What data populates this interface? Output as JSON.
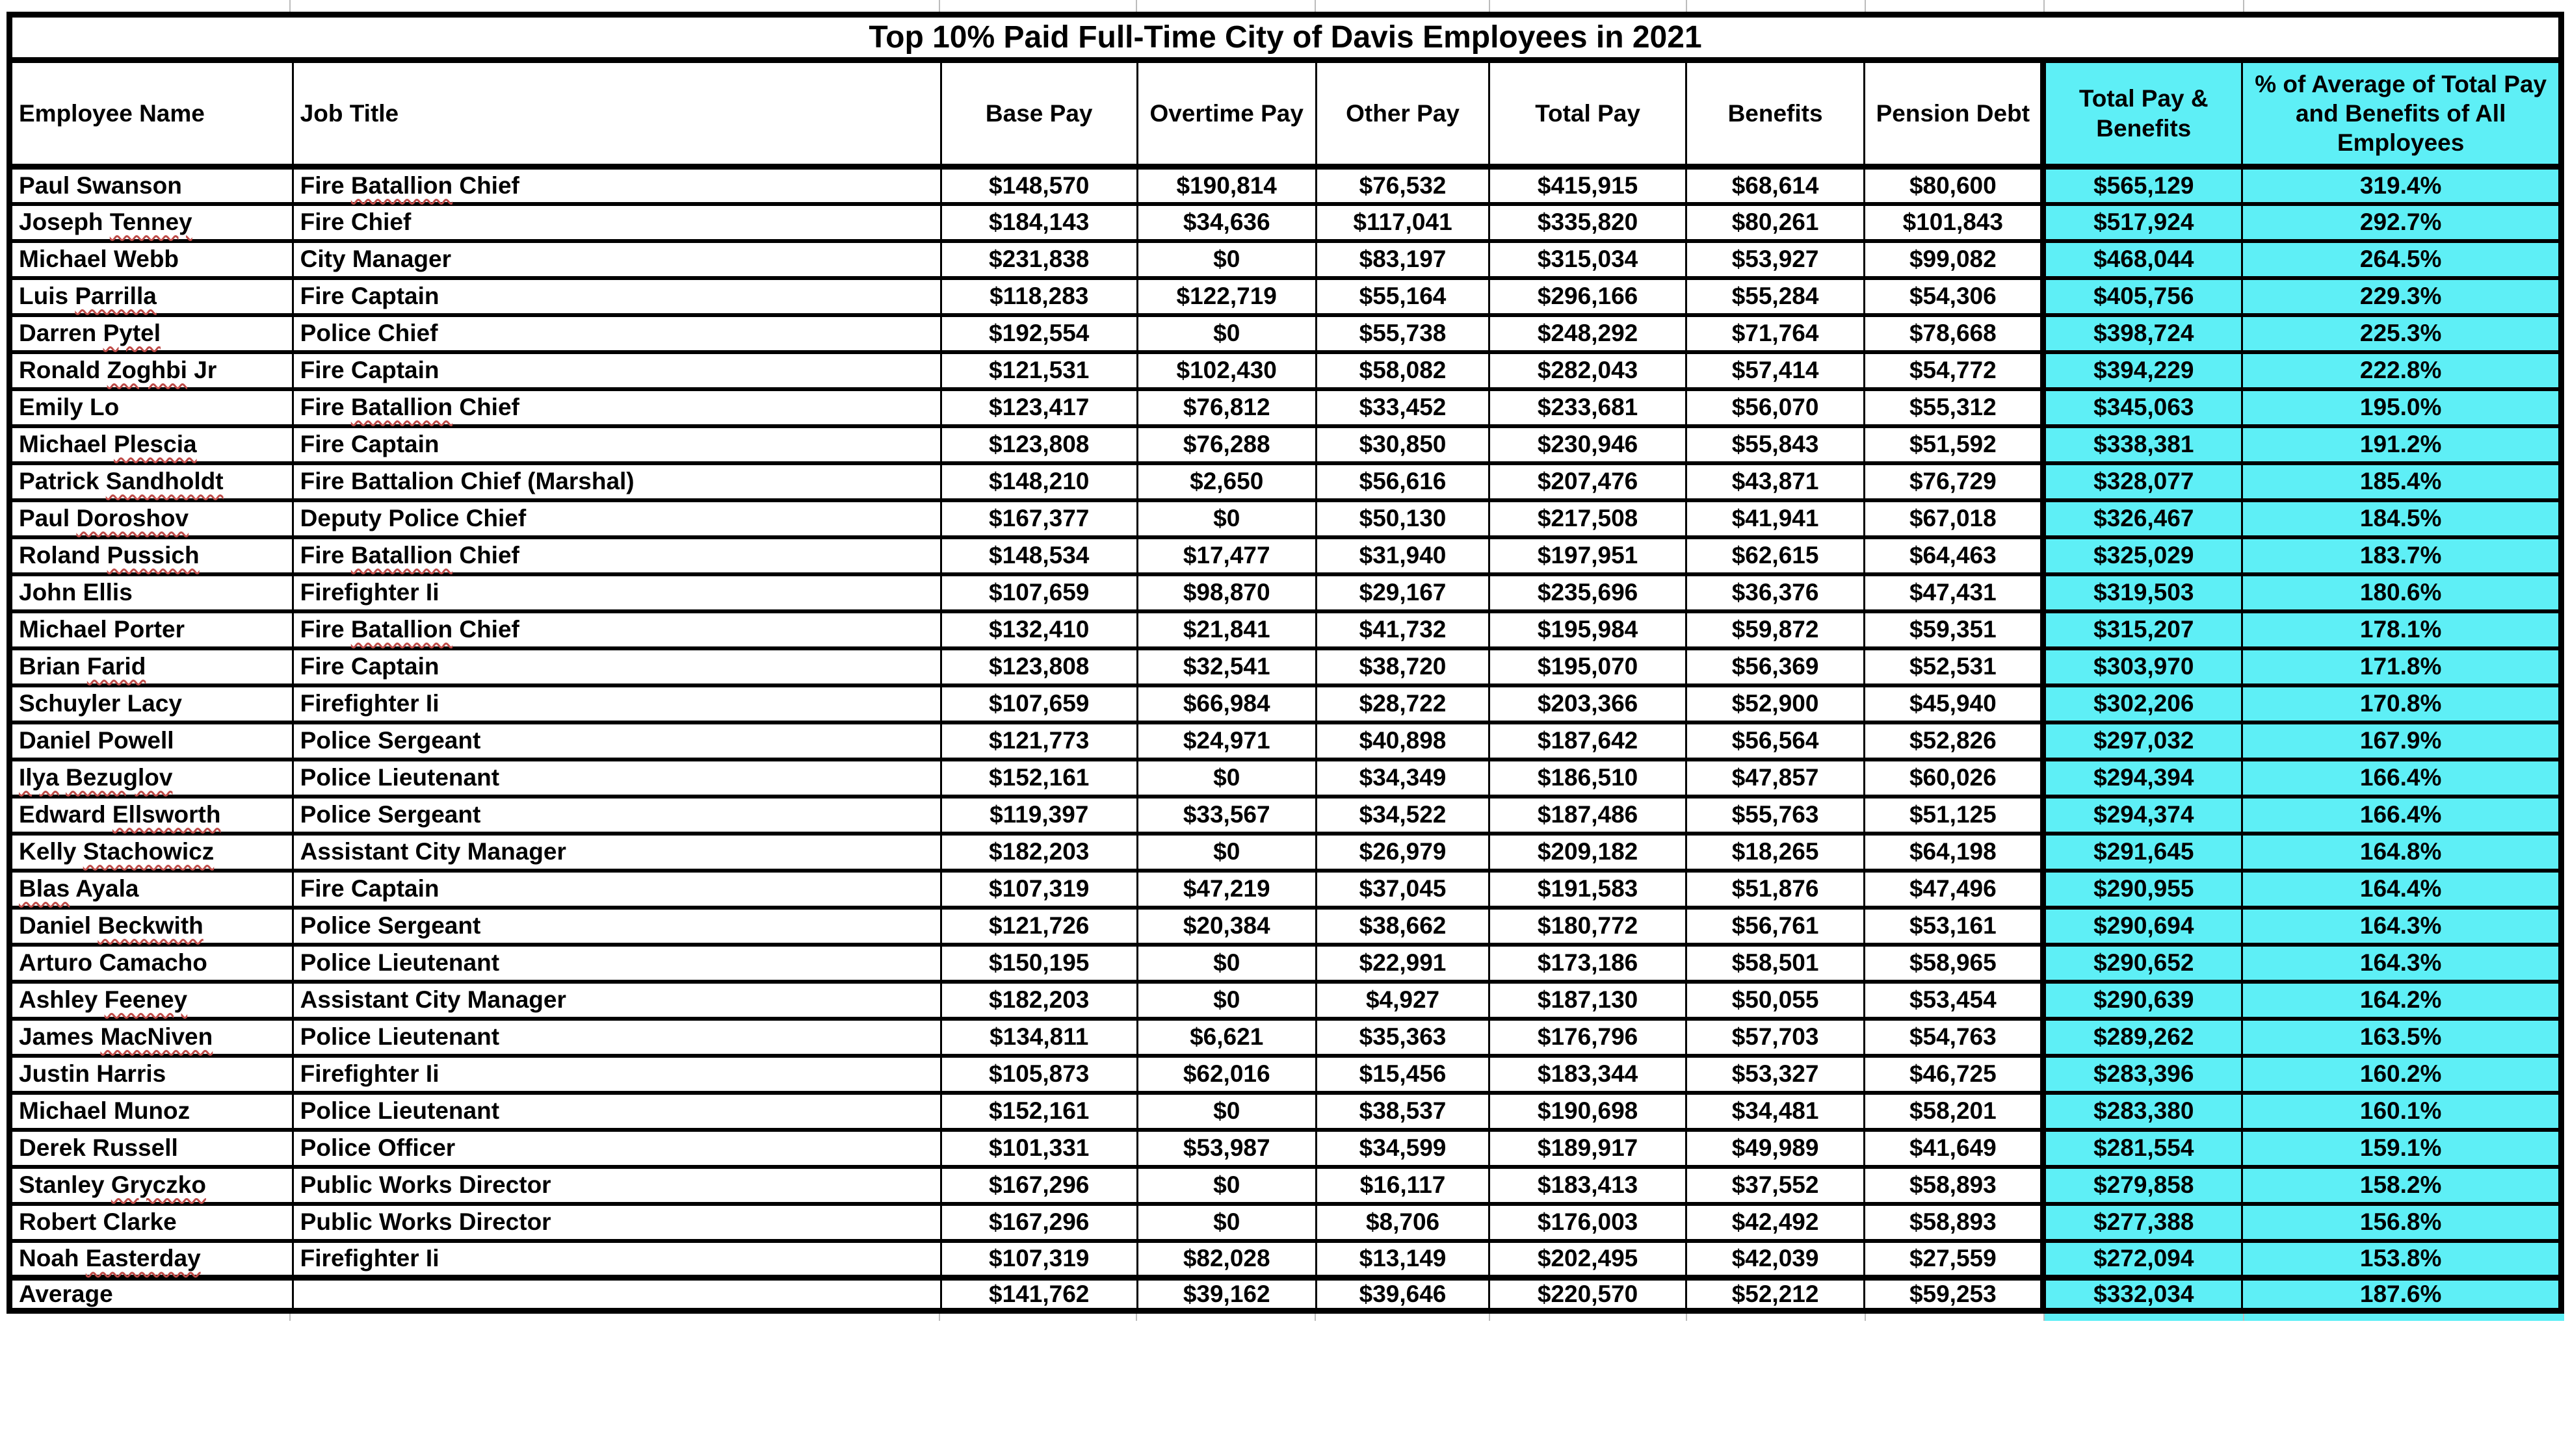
{
  "colors": {
    "highlight_cyan": "#5EEFF6",
    "squiggle_red": "#BE4B48",
    "border_black": "#000000",
    "grid_gray": "#BCBCBC"
  },
  "table": {
    "title": "Top 10% Paid Full-Time City of Davis Employees in 2021",
    "columns": [
      "Employee Name",
      "Job Title",
      "Base Pay",
      "Overtime Pay",
      "Other Pay",
      "Total Pay",
      "Benefits",
      "Pension Debt",
      "Total Pay & Benefits",
      "% of Average of Total Pay and Benefits of All Employees"
    ],
    "rows": [
      {
        "name": "Paul Swanson",
        "job_title": "Fire Batallion Chief",
        "base_pay": "$148,570",
        "overtime_pay": "$190,814",
        "other_pay": "$76,532",
        "total_pay": "$415,915",
        "benefits": "$68,614",
        "pension_debt": "$80,600",
        "total_pay_benefits": "$565,129",
        "pct_of_avg_total": "319.4%",
        "misspelled": [
          "Batallion"
        ]
      },
      {
        "name": "Joseph Tenney",
        "job_title": "Fire Chief",
        "base_pay": "$184,143",
        "overtime_pay": "$34,636",
        "other_pay": "$117,041",
        "total_pay": "$335,820",
        "benefits": "$80,261",
        "pension_debt": "$101,843",
        "total_pay_benefits": "$517,924",
        "pct_of_avg_total": "292.7%",
        "misspelled": [
          "Tenney"
        ]
      },
      {
        "name": "Michael Webb",
        "job_title": "City Manager",
        "base_pay": "$231,838",
        "overtime_pay": "$0",
        "other_pay": "$83,197",
        "total_pay": "$315,034",
        "benefits": "$53,927",
        "pension_debt": "$99,082",
        "total_pay_benefits": "$468,044",
        "pct_of_avg_total": "264.5%",
        "misspelled": []
      },
      {
        "name": "Luis Parrilla",
        "job_title": "Fire Captain",
        "base_pay": "$118,283",
        "overtime_pay": "$122,719",
        "other_pay": "$55,164",
        "total_pay": "$296,166",
        "benefits": "$55,284",
        "pension_debt": "$54,306",
        "total_pay_benefits": "$405,756",
        "pct_of_avg_total": "229.3%",
        "misspelled": [
          "Parrilla"
        ]
      },
      {
        "name": "Darren Pytel",
        "job_title": "Police Chief",
        "base_pay": "$192,554",
        "overtime_pay": "$0",
        "other_pay": "$55,738",
        "total_pay": "$248,292",
        "benefits": "$71,764",
        "pension_debt": "$78,668",
        "total_pay_benefits": "$398,724",
        "pct_of_avg_total": "225.3%",
        "misspelled": [
          "Pytel"
        ]
      },
      {
        "name": "Ronald Zoghbi Jr",
        "job_title": "Fire Captain",
        "base_pay": "$121,531",
        "overtime_pay": "$102,430",
        "other_pay": "$58,082",
        "total_pay": "$282,043",
        "benefits": "$57,414",
        "pension_debt": "$54,772",
        "total_pay_benefits": "$394,229",
        "pct_of_avg_total": "222.8%",
        "misspelled": [
          "Zoghbi"
        ]
      },
      {
        "name": "Emily Lo",
        "job_title": "Fire Batallion Chief",
        "base_pay": "$123,417",
        "overtime_pay": "$76,812",
        "other_pay": "$33,452",
        "total_pay": "$233,681",
        "benefits": "$56,070",
        "pension_debt": "$55,312",
        "total_pay_benefits": "$345,063",
        "pct_of_avg_total": "195.0%",
        "misspelled": [
          "Batallion"
        ]
      },
      {
        "name": "Michael Plescia",
        "job_title": "Fire Captain",
        "base_pay": "$123,808",
        "overtime_pay": "$76,288",
        "other_pay": "$30,850",
        "total_pay": "$230,946",
        "benefits": "$55,843",
        "pension_debt": "$51,592",
        "total_pay_benefits": "$338,381",
        "pct_of_avg_total": "191.2%",
        "misspelled": [
          "Plescia"
        ]
      },
      {
        "name": "Patrick Sandholdt",
        "job_title": "Fire Battalion Chief (Marshal)",
        "base_pay": "$148,210",
        "overtime_pay": "$2,650",
        "other_pay": "$56,616",
        "total_pay": "$207,476",
        "benefits": "$43,871",
        "pension_debt": "$76,729",
        "total_pay_benefits": "$328,077",
        "pct_of_avg_total": "185.4%",
        "misspelled": [
          "Sandholdt"
        ]
      },
      {
        "name": "Paul Doroshov",
        "job_title": "Deputy Police Chief",
        "base_pay": "$167,377",
        "overtime_pay": "$0",
        "other_pay": "$50,130",
        "total_pay": "$217,508",
        "benefits": "$41,941",
        "pension_debt": "$67,018",
        "total_pay_benefits": "$326,467",
        "pct_of_avg_total": "184.5%",
        "misspelled": [
          "Doroshov"
        ]
      },
      {
        "name": "Roland Pussich",
        "job_title": "Fire Batallion Chief",
        "base_pay": "$148,534",
        "overtime_pay": "$17,477",
        "other_pay": "$31,940",
        "total_pay": "$197,951",
        "benefits": "$62,615",
        "pension_debt": "$64,463",
        "total_pay_benefits": "$325,029",
        "pct_of_avg_total": "183.7%",
        "misspelled": [
          "Pussich",
          "Batallion"
        ]
      },
      {
        "name": "John Ellis",
        "job_title": "Firefighter Ii",
        "base_pay": "$107,659",
        "overtime_pay": "$98,870",
        "other_pay": "$29,167",
        "total_pay": "$235,696",
        "benefits": "$36,376",
        "pension_debt": "$47,431",
        "total_pay_benefits": "$319,503",
        "pct_of_avg_total": "180.6%",
        "misspelled": []
      },
      {
        "name": "Michael Porter",
        "job_title": "Fire Batallion Chief",
        "base_pay": "$132,410",
        "overtime_pay": "$21,841",
        "other_pay": "$41,732",
        "total_pay": "$195,984",
        "benefits": "$59,872",
        "pension_debt": "$59,351",
        "total_pay_benefits": "$315,207",
        "pct_of_avg_total": "178.1%",
        "misspelled": [
          "Batallion"
        ]
      },
      {
        "name": "Brian Farid",
        "job_title": "Fire Captain",
        "base_pay": "$123,808",
        "overtime_pay": "$32,541",
        "other_pay": "$38,720",
        "total_pay": "$195,070",
        "benefits": "$56,369",
        "pension_debt": "$52,531",
        "total_pay_benefits": "$303,970",
        "pct_of_avg_total": "171.8%",
        "misspelled": [
          "Farid"
        ]
      },
      {
        "name": "Schuyler Lacy",
        "job_title": "Firefighter Ii",
        "base_pay": "$107,659",
        "overtime_pay": "$66,984",
        "other_pay": "$28,722",
        "total_pay": "$203,366",
        "benefits": "$52,900",
        "pension_debt": "$45,940",
        "total_pay_benefits": "$302,206",
        "pct_of_avg_total": "170.8%",
        "misspelled": []
      },
      {
        "name": "Daniel Powell",
        "job_title": "Police Sergeant",
        "base_pay": "$121,773",
        "overtime_pay": "$24,971",
        "other_pay": "$40,898",
        "total_pay": "$187,642",
        "benefits": "$56,564",
        "pension_debt": "$52,826",
        "total_pay_benefits": "$297,032",
        "pct_of_avg_total": "167.9%",
        "misspelled": []
      },
      {
        "name": "Ilya Bezuglov",
        "job_title": "Police Lieutenant",
        "base_pay": "$152,161",
        "overtime_pay": "$0",
        "other_pay": "$34,349",
        "total_pay": "$186,510",
        "benefits": "$47,857",
        "pension_debt": "$60,026",
        "total_pay_benefits": "$294,394",
        "pct_of_avg_total": "166.4%",
        "misspelled": [
          "Ilya",
          "Bezuglov"
        ]
      },
      {
        "name": "Edward Ellsworth",
        "job_title": "Police Sergeant",
        "base_pay": "$119,397",
        "overtime_pay": "$33,567",
        "other_pay": "$34,522",
        "total_pay": "$187,486",
        "benefits": "$55,763",
        "pension_debt": "$51,125",
        "total_pay_benefits": "$294,374",
        "pct_of_avg_total": "166.4%",
        "misspelled": [
          "Ellsworth"
        ]
      },
      {
        "name": "Kelly Stachowicz",
        "job_title": "Assistant City Manager",
        "base_pay": "$182,203",
        "overtime_pay": "$0",
        "other_pay": "$26,979",
        "total_pay": "$209,182",
        "benefits": "$18,265",
        "pension_debt": "$64,198",
        "total_pay_benefits": "$291,645",
        "pct_of_avg_total": "164.8%",
        "misspelled": [
          "Stachowicz"
        ]
      },
      {
        "name": "Blas Ayala",
        "job_title": "Fire Captain",
        "base_pay": "$107,319",
        "overtime_pay": "$47,219",
        "other_pay": "$37,045",
        "total_pay": "$191,583",
        "benefits": "$51,876",
        "pension_debt": "$47,496",
        "total_pay_benefits": "$290,955",
        "pct_of_avg_total": "164.4%",
        "misspelled": [
          "Blas"
        ]
      },
      {
        "name": "Daniel Beckwith",
        "job_title": "Police Sergeant",
        "base_pay": "$121,726",
        "overtime_pay": "$20,384",
        "other_pay": "$38,662",
        "total_pay": "$180,772",
        "benefits": "$56,761",
        "pension_debt": "$53,161",
        "total_pay_benefits": "$290,694",
        "pct_of_avg_total": "164.3%",
        "misspelled": [
          "Beckwith"
        ]
      },
      {
        "name": "Arturo Camacho",
        "job_title": "Police Lieutenant",
        "base_pay": "$150,195",
        "overtime_pay": "$0",
        "other_pay": "$22,991",
        "total_pay": "$173,186",
        "benefits": "$58,501",
        "pension_debt": "$58,965",
        "total_pay_benefits": "$290,652",
        "pct_of_avg_total": "164.3%",
        "misspelled": []
      },
      {
        "name": "Ashley Feeney",
        "job_title": "Assistant City Manager",
        "base_pay": "$182,203",
        "overtime_pay": "$0",
        "other_pay": "$4,927",
        "total_pay": "$187,130",
        "benefits": "$50,055",
        "pension_debt": "$53,454",
        "total_pay_benefits": "$290,639",
        "pct_of_avg_total": "164.2%",
        "misspelled": [
          "Feeney"
        ]
      },
      {
        "name": "James MacNiven",
        "job_title": "Police Lieutenant",
        "base_pay": "$134,811",
        "overtime_pay": "$6,621",
        "other_pay": "$35,363",
        "total_pay": "$176,796",
        "benefits": "$57,703",
        "pension_debt": "$54,763",
        "total_pay_benefits": "$289,262",
        "pct_of_avg_total": "163.5%",
        "misspelled": [
          "MacNiven"
        ]
      },
      {
        "name": "Justin Harris",
        "job_title": "Firefighter Ii",
        "base_pay": "$105,873",
        "overtime_pay": "$62,016",
        "other_pay": "$15,456",
        "total_pay": "$183,344",
        "benefits": "$53,327",
        "pension_debt": "$46,725",
        "total_pay_benefits": "$283,396",
        "pct_of_avg_total": "160.2%",
        "misspelled": []
      },
      {
        "name": "Michael Munoz",
        "job_title": "Police Lieutenant",
        "base_pay": "$152,161",
        "overtime_pay": "$0",
        "other_pay": "$38,537",
        "total_pay": "$190,698",
        "benefits": "$34,481",
        "pension_debt": "$58,201",
        "total_pay_benefits": "$283,380",
        "pct_of_avg_total": "160.1%",
        "misspelled": []
      },
      {
        "name": "Derek Russell",
        "job_title": "Police Officer",
        "base_pay": "$101,331",
        "overtime_pay": "$53,987",
        "other_pay": "$34,599",
        "total_pay": "$189,917",
        "benefits": "$49,989",
        "pension_debt": "$41,649",
        "total_pay_benefits": "$281,554",
        "pct_of_avg_total": "159.1%",
        "misspelled": []
      },
      {
        "name": "Stanley Gryczko",
        "job_title": "Public Works Director",
        "base_pay": "$167,296",
        "overtime_pay": "$0",
        "other_pay": "$16,117",
        "total_pay": "$183,413",
        "benefits": "$37,552",
        "pension_debt": "$58,893",
        "total_pay_benefits": "$279,858",
        "pct_of_avg_total": "158.2%",
        "misspelled": [
          "Gryczko"
        ]
      },
      {
        "name": "Robert Clarke",
        "job_title": "Public Works Director",
        "base_pay": "$167,296",
        "overtime_pay": "$0",
        "other_pay": "$8,706",
        "total_pay": "$176,003",
        "benefits": "$42,492",
        "pension_debt": "$58,893",
        "total_pay_benefits": "$277,388",
        "pct_of_avg_total": "156.8%",
        "misspelled": []
      },
      {
        "name": "Noah Easterday",
        "job_title": "Firefighter Ii",
        "base_pay": "$107,319",
        "overtime_pay": "$82,028",
        "other_pay": "$13,149",
        "total_pay": "$202,495",
        "benefits": "$42,039",
        "pension_debt": "$27,559",
        "total_pay_benefits": "$272,094",
        "pct_of_avg_total": "153.8%",
        "misspelled": [
          "Easterday"
        ]
      }
    ],
    "average_row": {
      "label": "Average",
      "base_pay": "$141,762",
      "overtime_pay": "$39,162",
      "other_pay": "$39,646",
      "total_pay": "$220,570",
      "benefits": "$52,212",
      "pension_debt": "$59,253",
      "total_pay_benefits": "$332,034",
      "pct_of_avg_total": "187.6%"
    }
  }
}
